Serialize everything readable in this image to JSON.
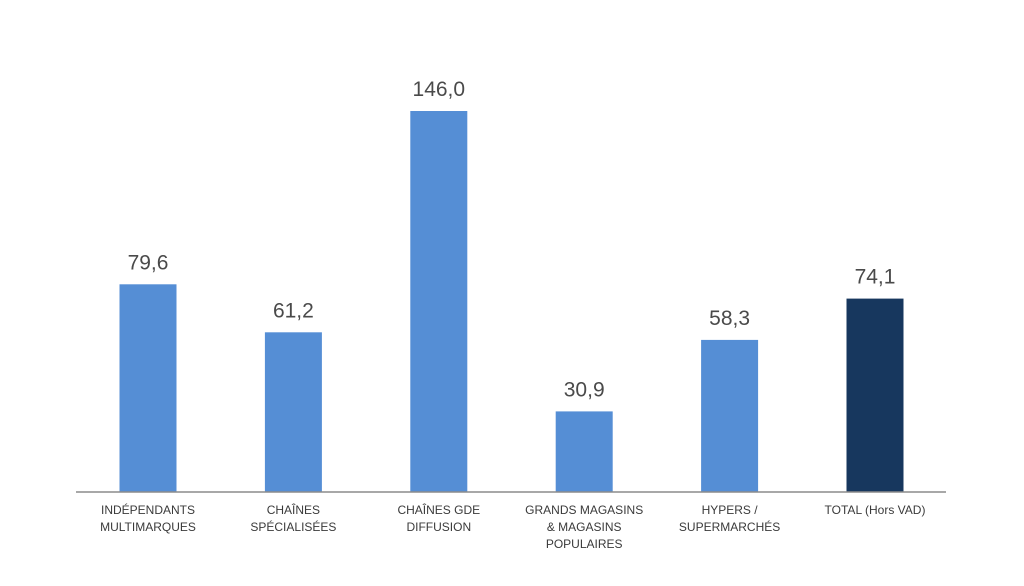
{
  "chart_data": {
    "type": "bar",
    "title": "",
    "xlabel": "",
    "ylabel": "",
    "ylim": [
      0,
      160
    ],
    "grid": false,
    "legend": "none",
    "categories": [
      [
        "INDÉPENDANTS",
        "MULTIMARQUES"
      ],
      [
        "CHAÎNES",
        "SPÉCIALISÉES"
      ],
      [
        "CHAÎNES GDE",
        "DIFFUSION"
      ],
      [
        "GRANDS MAGASINS",
        "& MAGASINS",
        "POPULAIRES"
      ],
      [
        "HYPERS /",
        "SUPERMARCHÉS"
      ],
      [
        "TOTAL (Hors VAD)"
      ]
    ],
    "values": [
      79.6,
      61.2,
      146.0,
      30.9,
      58.3,
      74.1
    ],
    "value_labels": [
      "79,6",
      "61,2",
      "146,0",
      "30,9",
      "58,3",
      "74,1"
    ],
    "colors": [
      "#558ed5",
      "#558ed5",
      "#558ed5",
      "#558ed5",
      "#558ed5",
      "#17375e"
    ]
  }
}
